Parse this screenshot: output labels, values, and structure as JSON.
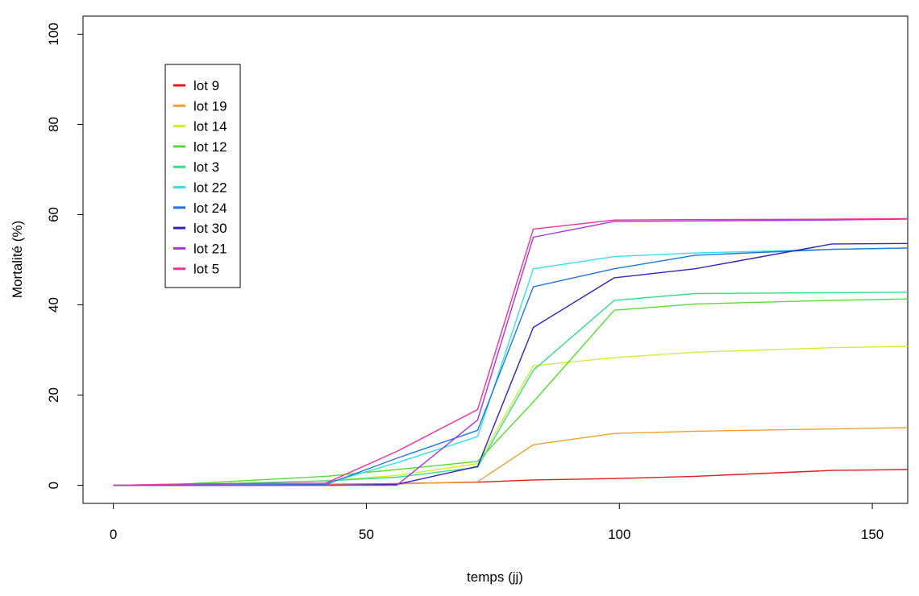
{
  "chart_data": {
    "type": "line",
    "title": "",
    "xlabel": "temps (jj)",
    "ylabel": "Mortalité (%)",
    "xlim": [
      -6,
      157
    ],
    "ylim": [
      -4,
      104
    ],
    "xticks": [
      0,
      50,
      100,
      150
    ],
    "yticks": [
      0,
      20,
      40,
      60,
      80,
      100
    ],
    "grid": false,
    "legend_position": "top-left",
    "series": [
      {
        "name": "lot 9",
        "color": "#e41a1c",
        "x": [
          0,
          14,
          42,
          56,
          72,
          83,
          99,
          115,
          142,
          157
        ],
        "y": [
          0,
          0,
          0.2,
          0.4,
          0.7,
          1.2,
          1.5,
          2.0,
          3.3,
          3.5
        ]
      },
      {
        "name": "lot 19",
        "color": "#f0a030",
        "x": [
          0,
          14,
          42,
          56,
          72,
          83,
          99,
          115,
          142,
          157
        ],
        "y": [
          0,
          0,
          0.1,
          0.3,
          0.8,
          9.0,
          11.5,
          12.0,
          12.5,
          12.8
        ]
      },
      {
        "name": "lot 14",
        "color": "#d4ec30",
        "x": [
          0,
          14,
          42,
          56,
          72,
          83,
          99,
          115,
          142,
          157
        ],
        "y": [
          0,
          0.2,
          1.0,
          2.2,
          4.8,
          26.5,
          28.3,
          29.5,
          30.5,
          30.8
        ]
      },
      {
        "name": "lot 12",
        "color": "#55dd30",
        "x": [
          0,
          14,
          42,
          56,
          72,
          83,
          99,
          115,
          142,
          157
        ],
        "y": [
          0,
          0.3,
          2.0,
          3.5,
          5.3,
          18.5,
          38.8,
          40.2,
          41.0,
          41.3
        ]
      },
      {
        "name": "lot 3",
        "color": "#33dd88",
        "x": [
          0,
          14,
          42,
          56,
          72,
          83,
          99,
          115,
          142,
          157
        ],
        "y": [
          0,
          0.1,
          1.0,
          1.8,
          4.0,
          25.5,
          41.0,
          42.5,
          42.7,
          42.8
        ]
      },
      {
        "name": "lot 22",
        "color": "#33e0ee",
        "x": [
          0,
          14,
          42,
          56,
          72,
          83,
          99,
          115,
          142,
          157
        ],
        "y": [
          0,
          0,
          0.4,
          5.0,
          10.8,
          48.0,
          50.7,
          51.5,
          52.3,
          52.6
        ]
      },
      {
        "name": "lot 24",
        "color": "#2277dd",
        "x": [
          0,
          14,
          42,
          56,
          72,
          83,
          99,
          115,
          142,
          157
        ],
        "y": [
          0,
          0,
          0.2,
          6.0,
          12.2,
          44.0,
          48.0,
          51.0,
          52.3,
          52.6
        ]
      },
      {
        "name": "lot 30",
        "color": "#3322bb",
        "x": [
          0,
          14,
          42,
          56,
          72,
          83,
          99,
          115,
          142,
          157
        ],
        "y": [
          0,
          0,
          0,
          0.2,
          4.2,
          35.0,
          46.0,
          48.0,
          53.5,
          53.6
        ]
      },
      {
        "name": "lot 21",
        "color": "#aa33dd",
        "x": [
          0,
          14,
          42,
          56,
          72,
          83,
          99,
          115,
          142,
          157
        ],
        "y": [
          0,
          0,
          0,
          0,
          14.5,
          55.0,
          58.5,
          58.6,
          58.8,
          59.0
        ]
      },
      {
        "name": "lot 5",
        "color": "#ee3399",
        "x": [
          0,
          14,
          42,
          56,
          72,
          83,
          99,
          115,
          142,
          157
        ],
        "y": [
          0,
          0.3,
          0.5,
          7.5,
          16.8,
          56.8,
          58.8,
          58.9,
          59.0,
          59.1
        ]
      }
    ]
  }
}
